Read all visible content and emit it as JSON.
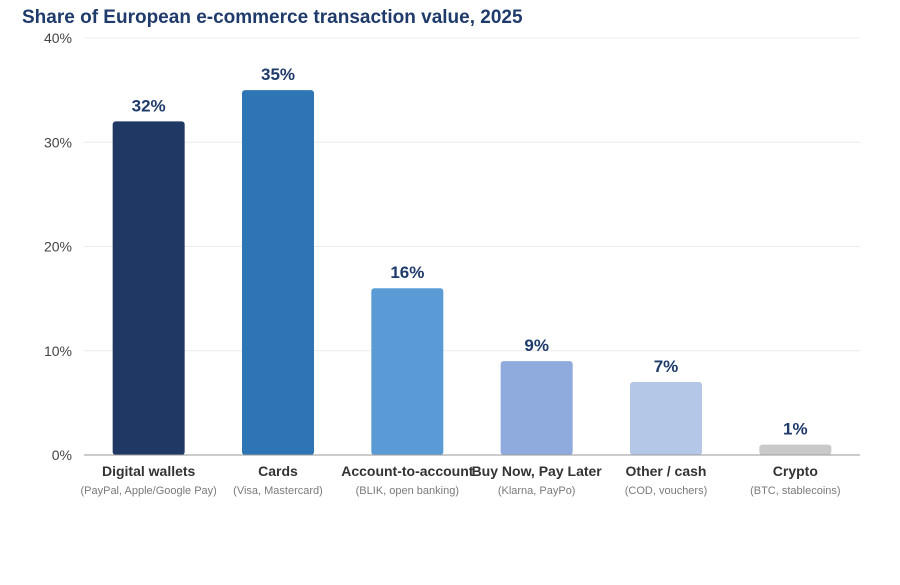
{
  "chart_data": {
    "type": "bar",
    "title": "Share of European e-commerce transaction value, 2025",
    "xlabel": "",
    "ylabel": "",
    "ylim": [
      0,
      40
    ],
    "yticks": [
      0,
      10,
      20,
      30,
      40
    ],
    "ytick_labels": [
      "0%",
      "10%",
      "20%",
      "30%",
      "40%"
    ],
    "grid": true,
    "legend": "none",
    "categories": [
      "Digital wallets",
      "Cards",
      "Account-to-account",
      "Buy Now, Pay Later",
      "Other / cash",
      "Crypto"
    ],
    "subcategories": [
      "(PayPal, Apple/Google Pay)",
      "(Visa, Mastercard)",
      "(BLIK, open banking)",
      "(Klarna, PayPo)",
      "(COD, vouchers)",
      "(BTC, stablecoins)"
    ],
    "values": [
      32,
      35,
      16,
      9,
      7,
      1
    ],
    "value_labels": [
      "32%",
      "35%",
      "16%",
      "9%",
      "7%",
      "1%"
    ],
    "colors": [
      "#1f3864",
      "#2e75b6",
      "#5b9bd5",
      "#8faadc",
      "#b4c7e7",
      "#c9c9c9"
    ]
  }
}
